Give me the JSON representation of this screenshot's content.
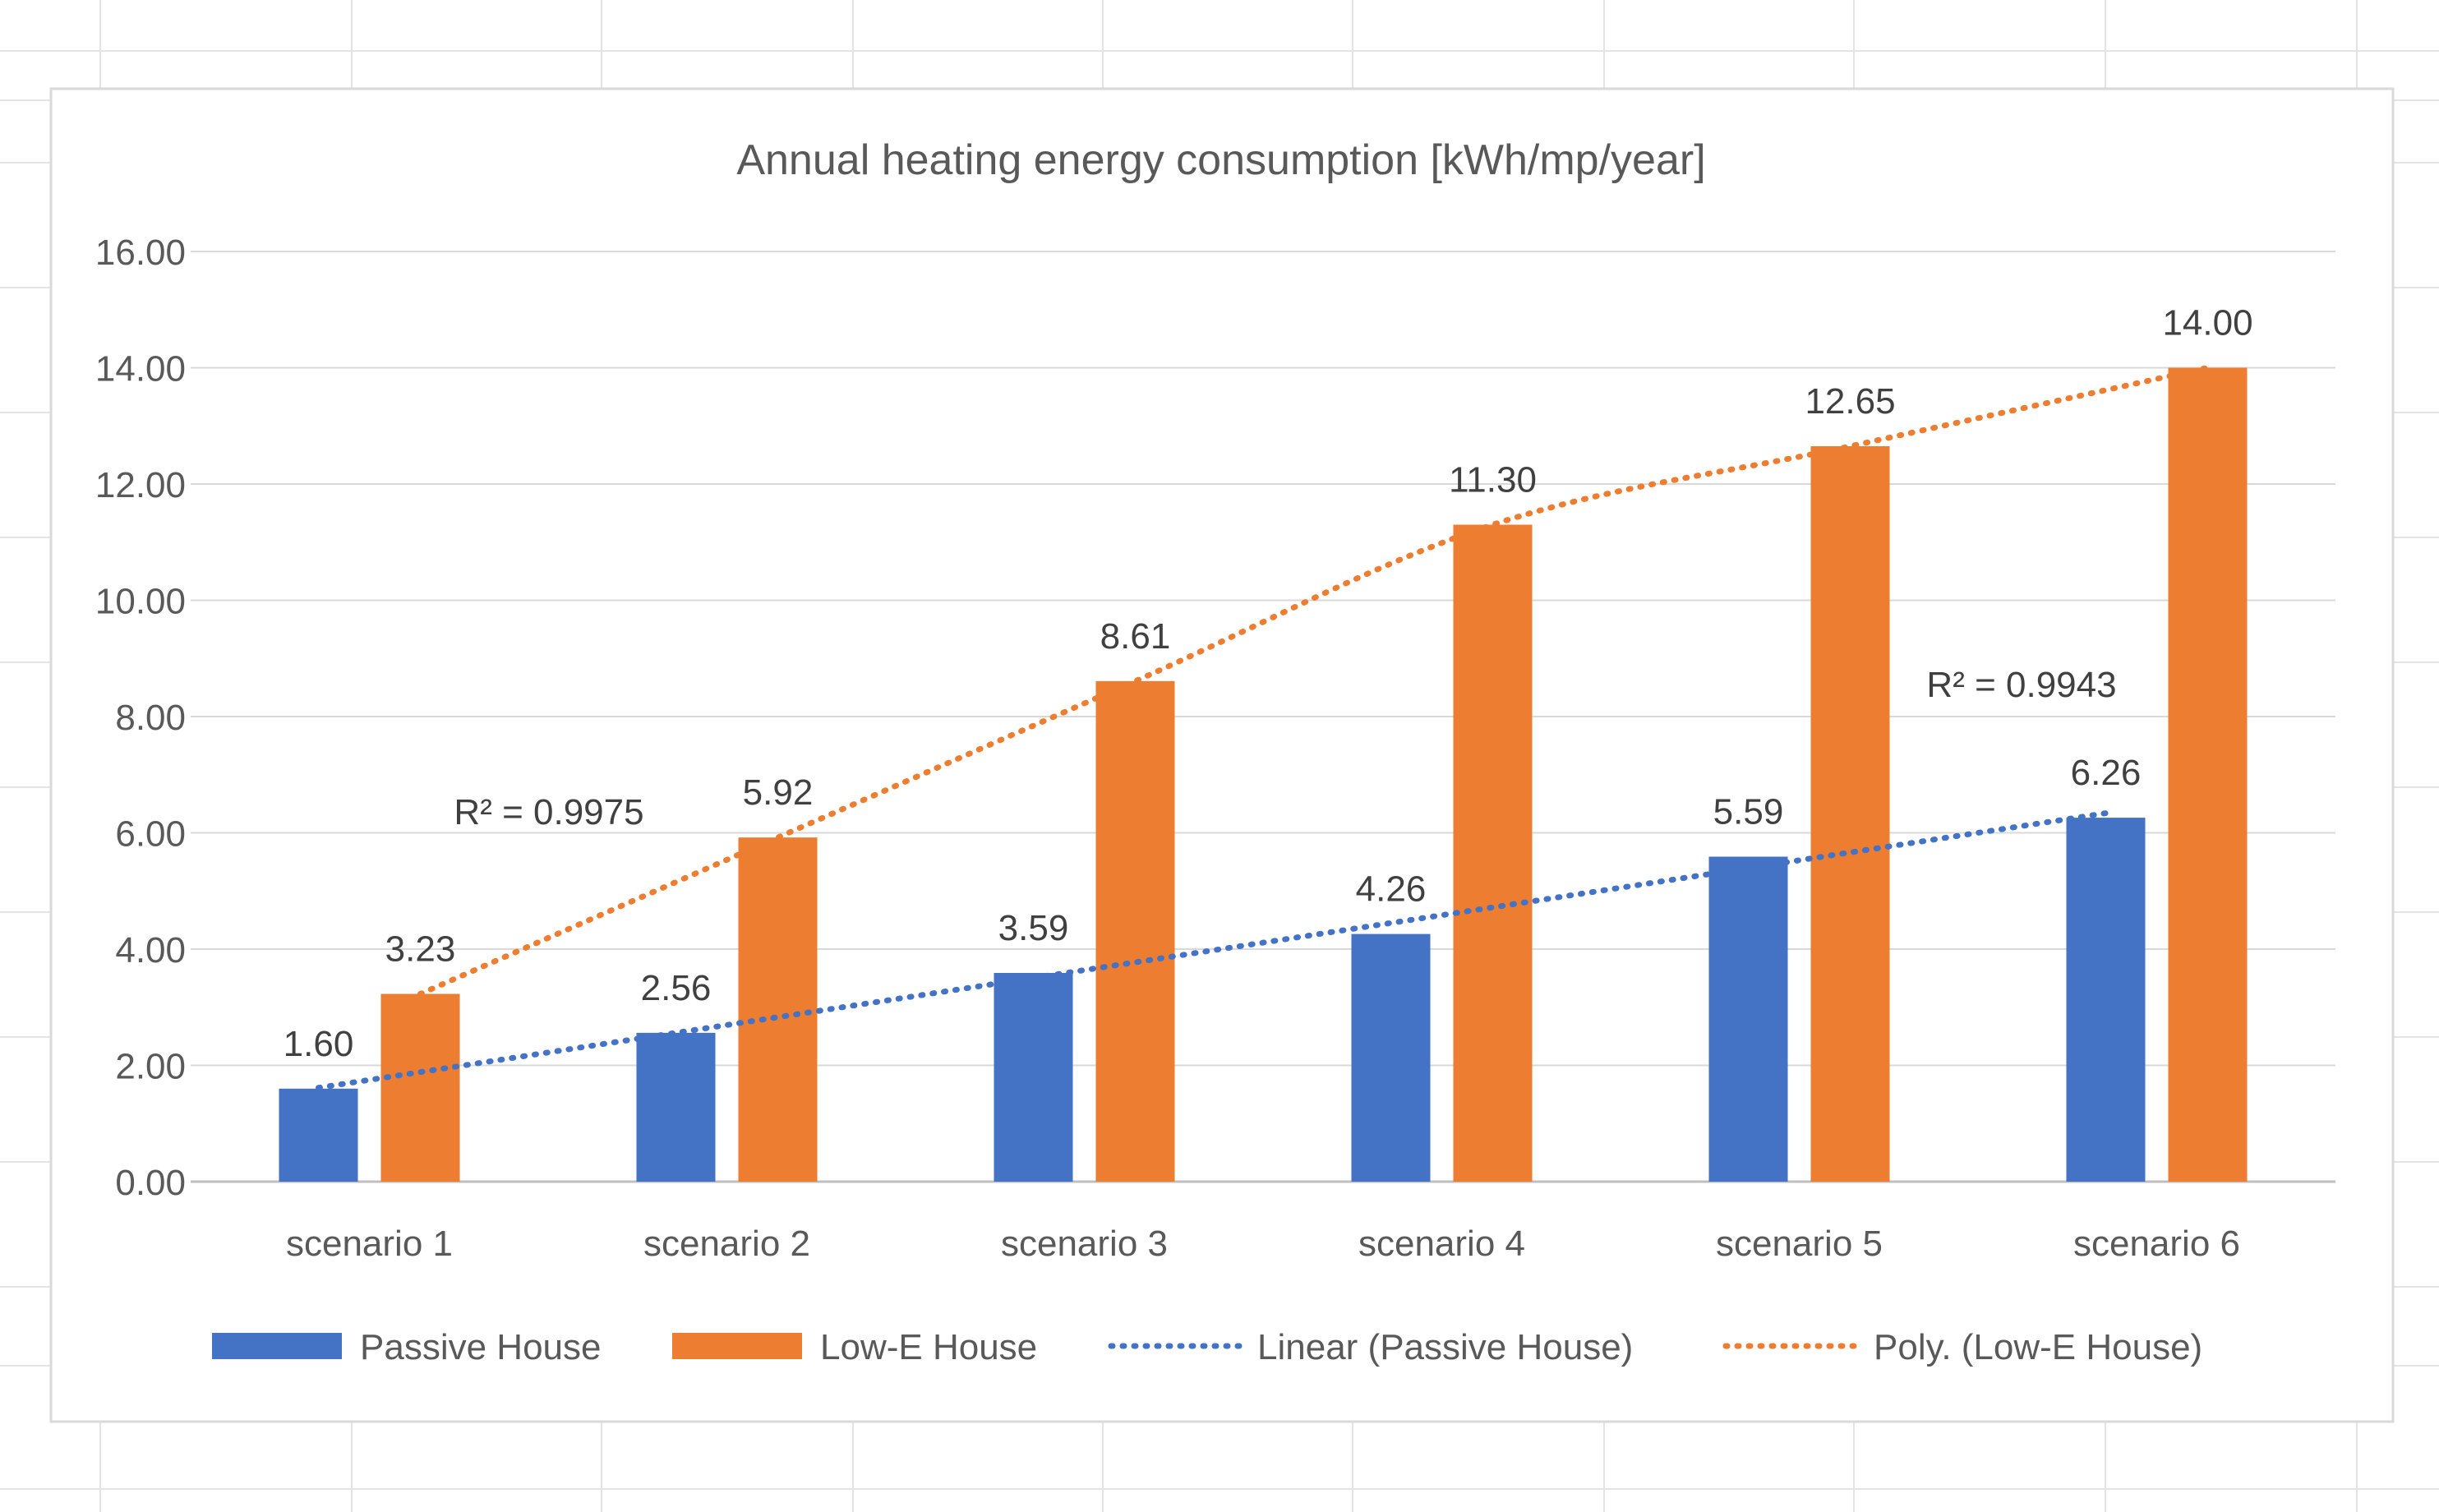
{
  "chart_data": {
    "type": "bar",
    "title": "Annual heating energy consumption [kWh/mp/year]",
    "xlabel": "",
    "ylabel": "",
    "categories": [
      "scenario 1",
      "scenario 2",
      "scenario 3",
      "scenario 4",
      "scenario 5",
      "scenario 6"
    ],
    "series": [
      {
        "name": "Passive House",
        "values": [
          1.6,
          2.56,
          3.59,
          4.26,
          5.59,
          6.26
        ],
        "labels": [
          "1.60",
          "2.56",
          "3.59",
          "4.26",
          "5.59",
          "6.26"
        ],
        "color": "#4472C4"
      },
      {
        "name": "Low-E House",
        "values": [
          3.23,
          5.92,
          8.61,
          11.3,
          12.65,
          14.0
        ],
        "labels": [
          "3.23",
          "5.92",
          "8.61",
          "11.30",
          "12.65",
          "14.00"
        ],
        "color": "#ED7D31"
      }
    ],
    "trendlines": [
      {
        "name": "Linear (Passive House)",
        "series": "Passive House",
        "kind": "linear",
        "r2": "R² = 0.9943",
        "color": "#4472C4",
        "style": "dotted"
      },
      {
        "name": "Poly. (Low-E House)",
        "series": "Low-E House",
        "kind": "polynomial",
        "r2": "R² = 0.9975",
        "color": "#ED7D31",
        "style": "dotted"
      }
    ],
    "ylim": [
      0,
      16
    ],
    "yticks": [
      "0.00",
      "2.00",
      "4.00",
      "6.00",
      "8.00",
      "10.00",
      "12.00",
      "14.00",
      "16.00"
    ],
    "grid": true,
    "legend_position": "bottom"
  }
}
